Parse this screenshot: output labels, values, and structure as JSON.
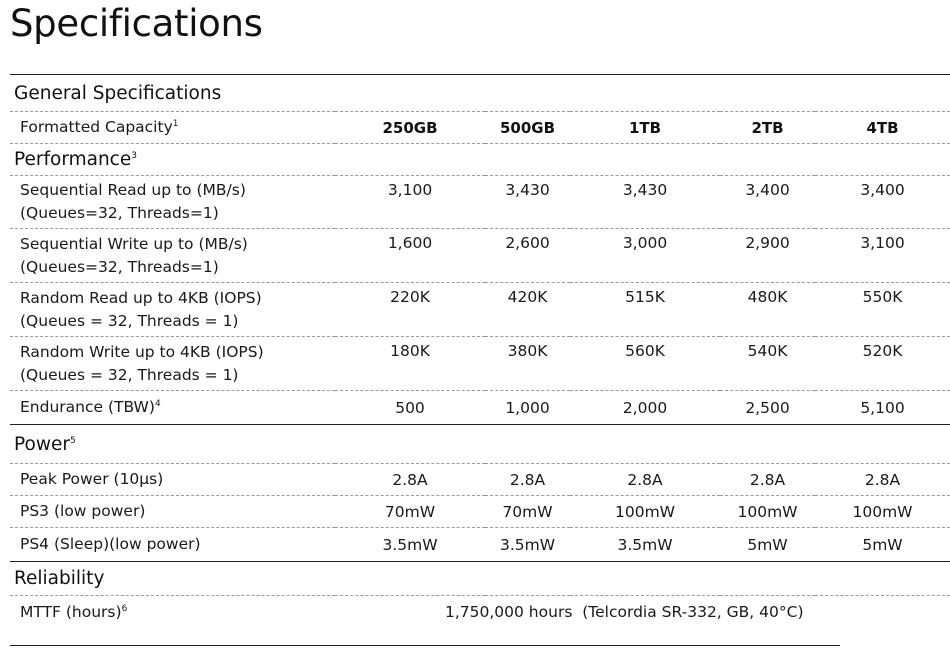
{
  "page": {
    "title": "Specifications"
  },
  "general": {
    "title": "General Specifications",
    "capacity_label": "Formatted Capacity",
    "capacity_sup": "1",
    "capacities": [
      "250GB",
      "500GB",
      "1TB",
      "2TB",
      "4TB"
    ]
  },
  "performance": {
    "title": "Performance",
    "title_sup": "3",
    "rows": [
      {
        "label_line1": "Sequential Read up to (MB/s)",
        "label_line2": "(Queues=32, Threads=1)",
        "values": [
          "3,100",
          "3,430",
          "3,430",
          "3,400",
          "3,400"
        ]
      },
      {
        "label_line1": "Sequential Write up to (MB/s)",
        "label_line2": "(Queues=32, Threads=1)",
        "values": [
          "1,600",
          "2,600",
          "3,000",
          "2,900",
          "3,100"
        ]
      },
      {
        "label_line1": "Random Read up to 4KB (IOPS)",
        "label_line2": "(Queues = 32, Threads = 1)",
        "values": [
          "220K",
          "420K",
          "515K",
          "480K",
          "550K"
        ]
      },
      {
        "label_line1": "Random Write up to 4KB (IOPS)",
        "label_line2": "(Queues = 32, Threads = 1)",
        "values": [
          "180K",
          "380K",
          "560K",
          "540K",
          "520K"
        ]
      }
    ],
    "endurance": {
      "label": "Endurance (TBW)",
      "sup": "4",
      "values": [
        "500",
        "1,000",
        "2,000",
        "2,500",
        "5,100"
      ]
    }
  },
  "power": {
    "title": "Power",
    "title_sup": "5",
    "rows": [
      {
        "label": "Peak Power (10µs)",
        "values": [
          "2.8A",
          "2.8A",
          "2.8A",
          "2.8A",
          "2.8A"
        ]
      },
      {
        "label": "PS3 (low power)",
        "values": [
          "70mW",
          "70mW",
          "100mW",
          "100mW",
          "100mW"
        ]
      },
      {
        "label": "PS4 (Sleep)(low power)",
        "values": [
          "3.5mW",
          "3.5mW",
          "3.5mW",
          "5mW",
          "5mW"
        ]
      }
    ]
  },
  "reliability": {
    "title": "Reliability",
    "mttf_label": "MTTF (hours)",
    "mttf_sup": "6",
    "mttf_value": "1,750,000 hours  (Telcordia SR-332, GB, 40°C)"
  }
}
